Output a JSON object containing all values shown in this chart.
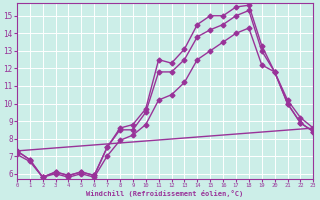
{
  "xlabel": "Windchill (Refroidissement éolien,°C)",
  "xlim": [
    0,
    23
  ],
  "ylim": [
    5.7,
    15.7
  ],
  "yticks": [
    6,
    7,
    8,
    9,
    10,
    11,
    12,
    13,
    14,
    15
  ],
  "xticks": [
    0,
    1,
    2,
    3,
    4,
    5,
    6,
    7,
    8,
    9,
    10,
    11,
    12,
    13,
    14,
    15,
    16,
    17,
    18,
    19,
    20,
    21,
    22,
    23
  ],
  "bg_color": "#cceee8",
  "grid_color": "#aacccc",
  "line_color": "#993399",
  "line1_x": [
    0,
    1,
    2,
    3,
    4,
    5,
    6,
    7,
    8,
    9,
    10,
    11,
    12,
    13,
    14,
    15,
    16,
    17,
    18,
    19,
    20,
    21,
    22,
    23
  ],
  "line1_y": [
    7.3,
    6.8,
    5.8,
    6.1,
    5.9,
    6.1,
    5.9,
    7.5,
    8.6,
    8.8,
    9.7,
    12.5,
    12.3,
    13.1,
    14.5,
    15.0,
    15.0,
    15.5,
    15.6,
    13.3,
    11.8,
    10.2,
    9.2,
    8.6
  ],
  "line2_x": [
    0,
    1,
    2,
    3,
    4,
    5,
    6,
    7,
    8,
    9,
    10,
    11,
    12,
    13,
    14,
    15,
    16,
    17,
    18,
    19,
    20,
    21,
    22,
    23
  ],
  "line2_y": [
    7.3,
    6.8,
    5.8,
    6.1,
    5.9,
    6.1,
    5.9,
    7.5,
    8.5,
    8.5,
    9.5,
    11.8,
    11.8,
    12.5,
    13.8,
    14.2,
    14.5,
    15.0,
    15.3,
    13.0,
    11.8,
    10.0,
    8.9,
    8.4
  ],
  "line3_x": [
    0,
    23
  ],
  "line3_y": [
    7.3,
    8.6
  ],
  "line4_x": [
    0,
    1,
    2,
    3,
    4,
    5,
    6,
    7,
    8,
    9,
    10,
    11,
    12,
    13,
    14,
    15,
    16,
    17,
    18,
    19,
    20,
    21,
    22,
    23
  ],
  "line4_y": [
    7.1,
    6.7,
    5.8,
    6.0,
    5.8,
    6.0,
    5.8,
    7.0,
    7.9,
    8.2,
    8.8,
    10.2,
    10.5,
    11.2,
    12.5,
    13.0,
    13.5,
    14.0,
    14.3,
    12.2,
    11.8,
    10.0,
    8.9,
    8.4
  ],
  "markersize": 2.5,
  "linewidth": 1.0
}
